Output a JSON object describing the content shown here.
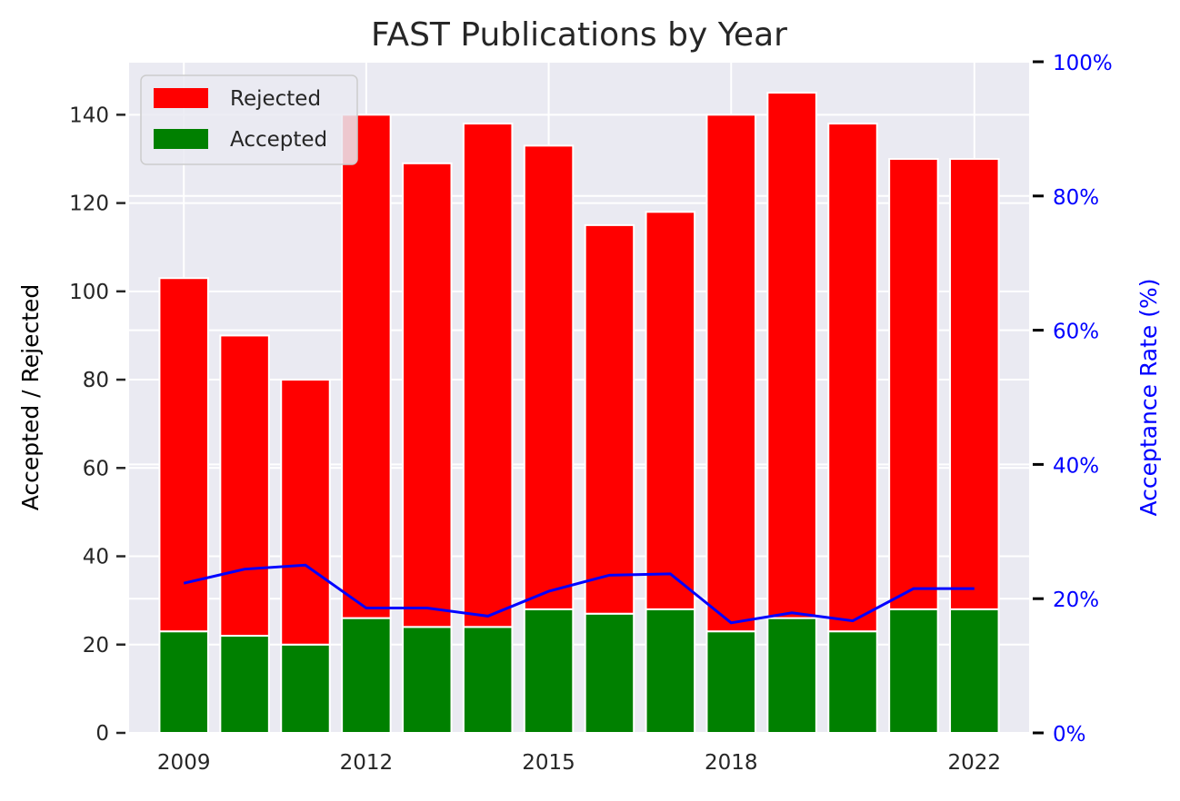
{
  "chart_data": {
    "type": "bar",
    "title": "FAST Publications by Year",
    "x": [
      2009,
      2010,
      2011,
      2012,
      2013,
      2014,
      2015,
      2016,
      2017,
      2018,
      2019,
      2020,
      2021,
      2022
    ],
    "x_tick_labels": [
      "2009",
      "2012",
      "2015",
      "2018",
      "2022"
    ],
    "x_tick_values": [
      2009,
      2012,
      2015,
      2018,
      2022
    ],
    "series": [
      {
        "name": "Rejected",
        "values": [
          80,
          68,
          60,
          114,
          105,
          114,
          105,
          88,
          90,
          117,
          119,
          115,
          102,
          102
        ],
        "color": "#ff0000"
      },
      {
        "name": "Accepted",
        "values": [
          23,
          22,
          20,
          26,
          24,
          24,
          28,
          27,
          28,
          23,
          26,
          23,
          28,
          28
        ],
        "color": "#008000"
      }
    ],
    "line": {
      "values": [
        22.3,
        24.4,
        25.0,
        18.6,
        18.6,
        17.4,
        21.1,
        23.5,
        23.7,
        16.4,
        17.9,
        16.7,
        21.5,
        21.5
      ],
      "color": "#0000ff"
    },
    "ylabel": "Accepted / Rejected",
    "ylim": [
      0,
      152
    ],
    "y_ticks": [
      0,
      20,
      40,
      60,
      80,
      100,
      120,
      140
    ],
    "y2label": "Acceptance Rate (%)",
    "y2lim": [
      0,
      100
    ],
    "y2_ticks": [
      0,
      20,
      40,
      60,
      80,
      100
    ],
    "y2_tick_labels": [
      "0%",
      "20%",
      "40%",
      "60%",
      "80%",
      "100%"
    ],
    "legend_placement": "top-left",
    "grid": true,
    "colors": {
      "plot_bg": "#eaeaf2",
      "grid": "#ffffff",
      "right_axis": "#0000ff"
    }
  }
}
